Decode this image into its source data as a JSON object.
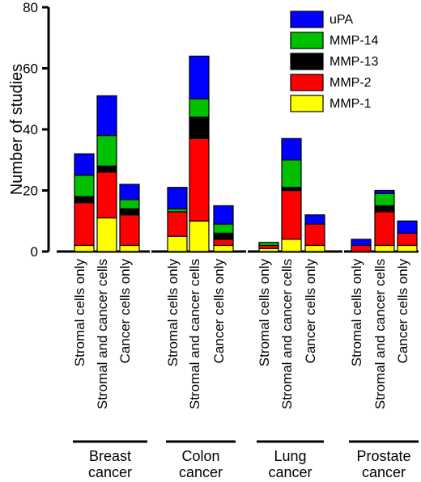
{
  "chart_data": {
    "type": "bar",
    "stacked": true,
    "ylabel": "Number of studies",
    "ylim": [
      0,
      80
    ],
    "yticks": [
      "0",
      "20",
      "40",
      "60",
      "80"
    ],
    "groups": [
      {
        "label_line1": "Breast",
        "label_line2": "cancer",
        "categories": [
          "Stromal cells only",
          "Stromal and cancer cells",
          "Cancer cells only"
        ]
      },
      {
        "label_line1": "Colon",
        "label_line2": "cancer",
        "categories": [
          "Stromal cells only",
          "Stromal and cancer cells",
          "Cancer cells only"
        ]
      },
      {
        "label_line1": "Lung",
        "label_line2": "cancer",
        "categories": [
          "Stromal cells only",
          "Stromal and cancer cells",
          "Cancer cells only"
        ]
      },
      {
        "label_line1": "Prostate",
        "label_line2": "cancer",
        "categories": [
          "Stromal cells only",
          "Stromal and cancer cells",
          "Cancer cells only"
        ]
      }
    ],
    "legend_position": "top-right",
    "legend_order": [
      "uPA",
      "MMP-14",
      "MMP-13",
      "MMP-2",
      "MMP-1"
    ],
    "series": [
      {
        "name": "MMP-1",
        "color": "#ffff00",
        "values": [
          2,
          11,
          2,
          5,
          10,
          2,
          1,
          4,
          2,
          0,
          2,
          2
        ]
      },
      {
        "name": "MMP-2",
        "color": "#ff0000",
        "values": [
          14,
          15,
          10,
          8,
          27,
          2,
          1,
          16,
          7,
          2,
          11,
          4
        ]
      },
      {
        "name": "MMP-13",
        "color": "#000000",
        "values": [
          2,
          2,
          2,
          0,
          7,
          2,
          0,
          1,
          0,
          0,
          2,
          0
        ]
      },
      {
        "name": "MMP-14",
        "color": "#00c000",
        "values": [
          7,
          10,
          3,
          1,
          6,
          3,
          1,
          9,
          0,
          0,
          4,
          0
        ]
      },
      {
        "name": "uPA",
        "color": "#0000ff",
        "values": [
          7,
          13,
          5,
          7,
          14,
          6,
          0,
          7,
          3,
          2,
          1,
          4
        ]
      }
    ]
  }
}
